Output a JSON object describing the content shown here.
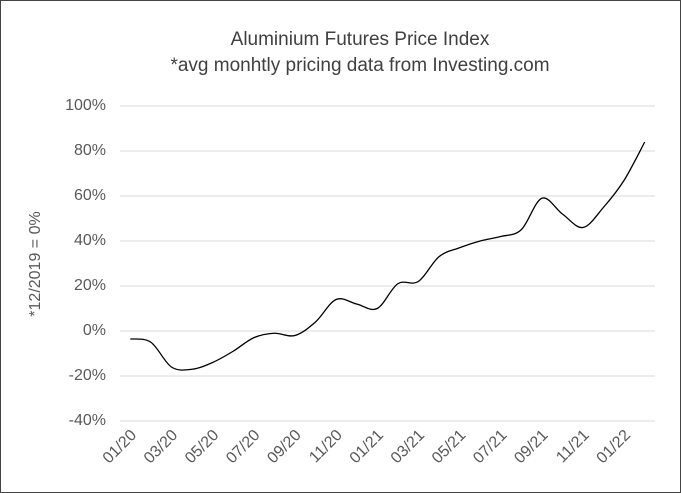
{
  "chart_data": {
    "type": "line",
    "title": "Aluminium Futures Price Index",
    "subtitle": "*avg monhtly pricing data from Investing.com",
    "y_label": "*12/2019 = 0%",
    "categories": [
      "01/20",
      null,
      "03/20",
      null,
      "05/20",
      null,
      "07/20",
      null,
      "09/20",
      null,
      "11/20",
      null,
      "01/21",
      null,
      "03/21",
      null,
      "05/21",
      null,
      "07/21",
      null,
      "09/21",
      null,
      "11/21",
      null,
      "01/22",
      null
    ],
    "series": [
      {
        "name": "Aluminium",
        "color": "#000000",
        "values": [
          -3.5,
          -5,
          -16,
          -17,
          -14,
          -9,
          -3,
          -1,
          -2,
          4,
          14,
          12,
          10,
          21,
          22,
          33,
          37,
          40,
          42,
          45,
          59,
          52,
          46,
          55,
          67,
          84
        ]
      }
    ],
    "ylim": [
      -40,
      100
    ],
    "yticks": [
      {
        "value": -40,
        "label": "-40%"
      },
      {
        "value": -20,
        "label": "-20%"
      },
      {
        "value": 0,
        "label": "0%"
      },
      {
        "value": 20,
        "label": "20%"
      },
      {
        "value": 40,
        "label": "40%"
      },
      {
        "value": 60,
        "label": "60%"
      },
      {
        "value": 80,
        "label": "80%"
      },
      {
        "value": 100,
        "label": "100%"
      }
    ],
    "grid": true
  }
}
